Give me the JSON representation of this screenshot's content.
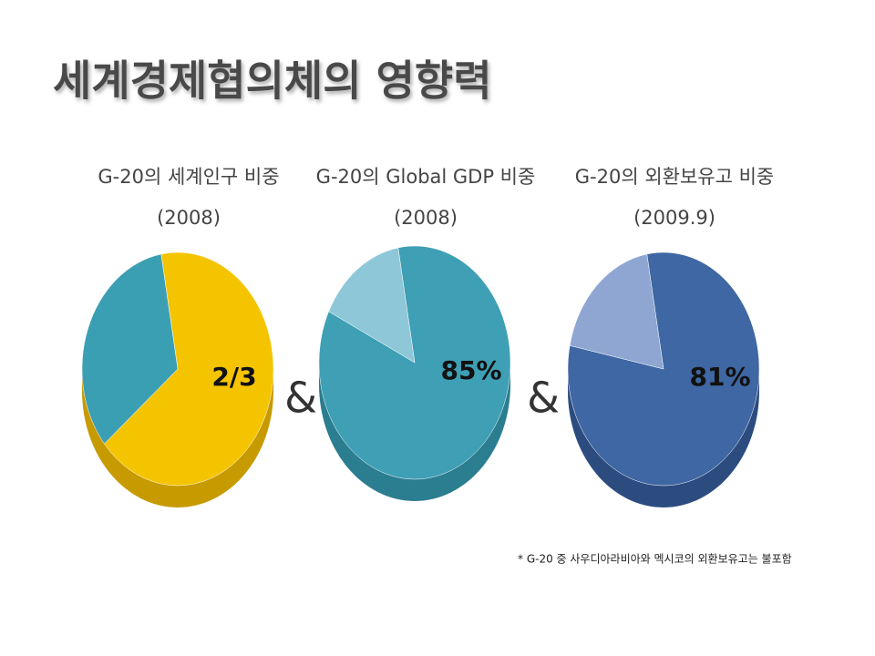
{
  "title": "세계경제협의체의 영향력",
  "separators": [
    "&",
    "&"
  ],
  "note": "* G-20 중 사우디아라비아와 멕시코의 외환보유고는 불포함",
  "chart_data": [
    {
      "type": "pie",
      "title": "G-20의 세계인구 비중",
      "subtitle": "(2008)",
      "values": [
        66.7,
        33.3
      ],
      "value_labels": [
        "2/3",
        null
      ],
      "colors": [
        "#f5c400",
        "#3b9fb3"
      ],
      "side_color": "#c79a00"
    },
    {
      "type": "pie",
      "title": "G-20의 Global GDP 비중",
      "subtitle": "(2008)",
      "values": [
        85,
        15
      ],
      "value_labels": [
        "85%",
        null
      ],
      "colors": [
        "#3e9fb5",
        "#8ec8d8"
      ],
      "side_color": "#2b7d90"
    },
    {
      "type": "pie",
      "title": "G-20의 외환보유고 비중",
      "subtitle": "(2009.9)",
      "values": [
        81,
        19
      ],
      "value_labels": [
        "81%",
        null
      ],
      "colors": [
        "#3f67a3",
        "#8fa6d3"
      ],
      "side_color": "#2c4c80"
    }
  ]
}
